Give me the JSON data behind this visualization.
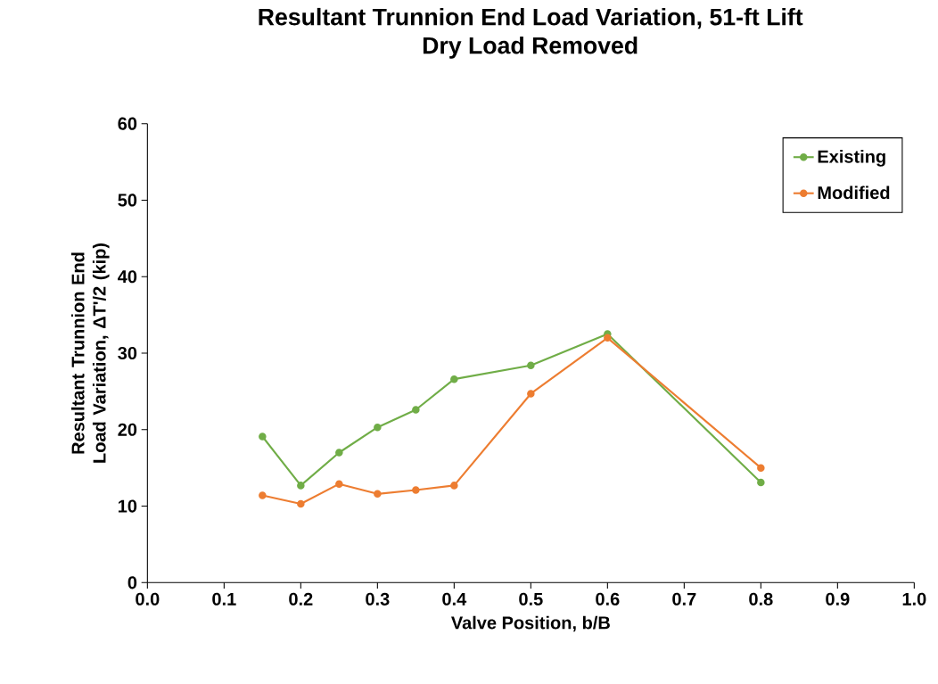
{
  "chart_data": {
    "type": "line",
    "title": "Resultant Trunnion End Load Variation, 51-ft Lift",
    "subtitle": "Dry Load Removed",
    "xlabel": "Valve Position, b/B",
    "ylabel": "Resultant Trunnion End Load Variation, ΔT'/2 (kip)",
    "x": [
      0.15,
      0.2,
      0.25,
      0.3,
      0.35,
      0.4,
      0.5,
      0.6,
      0.8
    ],
    "series": [
      {
        "name": "Existing",
        "color": "#70ad47",
        "values": [
          19.1,
          12.7,
          17.0,
          20.3,
          22.6,
          26.6,
          28.4,
          32.5,
          13.1
        ]
      },
      {
        "name": "Modified",
        "color": "#ed7d31",
        "values": [
          11.4,
          10.3,
          12.9,
          11.6,
          12.1,
          12.7,
          24.7,
          32.0,
          15.0
        ]
      }
    ],
    "xlim": [
      0,
      1
    ],
    "ylim": [
      0,
      60
    ],
    "xticks": [
      {
        "value": 0,
        "label": "0.0"
      },
      {
        "value": 0.1,
        "label": "0.1"
      },
      {
        "value": 0.2,
        "label": "0.2"
      },
      {
        "value": 0.3,
        "label": "0.3"
      },
      {
        "value": 0.4,
        "label": "0.4"
      },
      {
        "value": 0.5,
        "label": "0.5"
      },
      {
        "value": 0.6,
        "label": "0.6"
      },
      {
        "value": 0.7,
        "label": "0.7"
      },
      {
        "value": 0.8,
        "label": "0.8"
      },
      {
        "value": 0.9,
        "label": "0.9"
      },
      {
        "value": 1,
        "label": "1.0"
      }
    ],
    "yticks": [
      0,
      10,
      20,
      30,
      40,
      50,
      60
    ],
    "grid": false,
    "legend": "top right",
    "marker": "circle",
    "line_style": "solid"
  }
}
